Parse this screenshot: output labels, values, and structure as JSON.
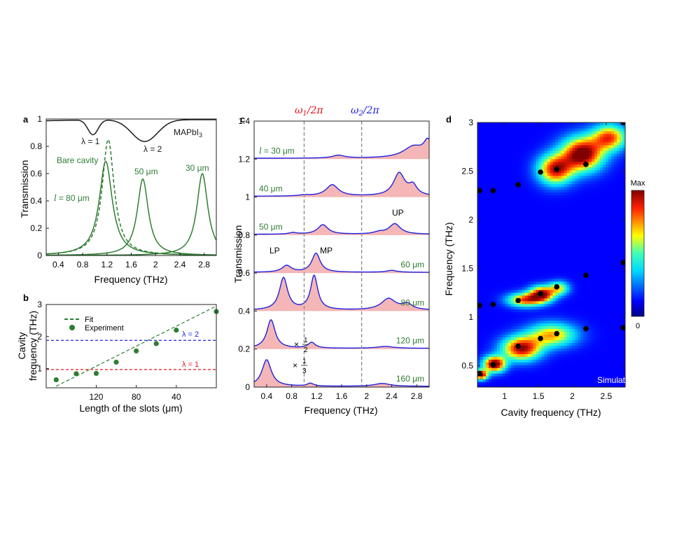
{
  "colors": {
    "black": "#1a1a1a",
    "green": "#2e7d32",
    "blue": "#2020e0",
    "red": "#e0161b",
    "fill": "#f4b6b6"
  },
  "panel_letters": [
    "a",
    "b",
    "c",
    "d"
  ],
  "chart_data": [
    {
      "id": "a",
      "type": "line",
      "xlabel": "Frequency (THz)",
      "ylabel": "Transmission",
      "xlim": [
        0.2,
        3.0
      ],
      "ylim": [
        0,
        1
      ],
      "xticks": [
        "0.4",
        "0.8",
        "1.2",
        "1.6",
        "2",
        "2.4",
        "2.8"
      ],
      "xtick_values": [
        0.4,
        0.8,
        1.2,
        1.6,
        2.0,
        2.4,
        2.8
      ],
      "yticks": [
        "0",
        "0.2",
        "0.4",
        "0.6",
        "0.8",
        "1"
      ],
      "ytick_values": [
        0,
        0.2,
        0.4,
        0.6,
        0.8,
        1.0
      ],
      "labels": {
        "mapbi_main": "MAPbI",
        "mapbi_sub": "3",
        "lambda1": "λ = 1",
        "lambda2": "λ = 2",
        "bare": "Bare cavity",
        "l80": "= 80 μm",
        "l80_prefix": "l",
        "l50": "50 μm",
        "l30": "30 μm"
      },
      "series": [
        {
          "name": "MAPbI3",
          "style": "black",
          "dips": [
            {
              "f": 0.97,
              "depth": 0.11,
              "w": 0.12
            },
            {
              "f": 1.82,
              "depth": 0.16,
              "w": 0.3
            }
          ]
        },
        {
          "name": "80 μm",
          "style": "green",
          "peak": 1.18,
          "height": 0.69,
          "gamma": 0.13
        },
        {
          "name": "Bare cavity",
          "style": "green-dashed",
          "peak": 1.22,
          "height": 0.85,
          "gamma": 0.12
        },
        {
          "name": "50 μm",
          "style": "green",
          "peak": 1.79,
          "height": 0.56,
          "gamma": 0.11
        },
        {
          "name": "30 μm",
          "style": "green",
          "peak": 2.77,
          "height": 0.6,
          "gamma": 0.11
        }
      ]
    },
    {
      "id": "b",
      "type": "scatter",
      "xlabel": "Length of the slots (μm)",
      "ylabel_line1": "Cavity",
      "ylabel_line2": "frequency (THz)",
      "xlim": [
        170,
        0
      ],
      "ylim": [
        0.4,
        3.0
      ],
      "xticks": [
        "120",
        "80",
        "40"
      ],
      "xtick_values": [
        120,
        80,
        40
      ],
      "yticks": [
        "1",
        "2",
        "3"
      ],
      "ytick_values": [
        1,
        2,
        3
      ],
      "legend": [
        "Fit",
        "Experiment"
      ],
      "hlines": [
        {
          "label": "λ = 2",
          "y": 1.88,
          "color": "blue"
        },
        {
          "label": "λ = 1",
          "y": 0.97,
          "color": "red"
        }
      ],
      "fit": {
        "x": [
          160,
          0
        ],
        "y": [
          0.45,
          2.95
        ]
      },
      "points": [
        {
          "x": 160,
          "y": 0.65
        },
        {
          "x": 140,
          "y": 0.84
        },
        {
          "x": 120,
          "y": 0.85
        },
        {
          "x": 100,
          "y": 1.2
        },
        {
          "x": 80,
          "y": 1.55
        },
        {
          "x": 60,
          "y": 1.78
        },
        {
          "x": 40,
          "y": 2.2
        },
        {
          "x": 0,
          "y": 2.78
        }
      ]
    },
    {
      "id": "c",
      "type": "line",
      "xlabel": "Frequency (THz)",
      "ylabel": "Transmission",
      "xlim": [
        0.2,
        3.0
      ],
      "ylim": [
        0,
        1.4
      ],
      "xticks": [
        "0.4",
        "0.8",
        "1.2",
        "1.6",
        "2",
        "2.4",
        "2.8"
      ],
      "xtick_values": [
        0.4,
        0.8,
        1.2,
        1.6,
        2.0,
        2.4,
        2.8
      ],
      "yticks": [
        "0",
        "0.2",
        "0.4",
        "0.6",
        "0.8",
        "1",
        "1.2",
        "1.4"
      ],
      "ytick_values": [
        0,
        0.2,
        0.4,
        0.6,
        0.8,
        1.0,
        1.2,
        1.4
      ],
      "vlines": [
        {
          "x": 1.0,
          "label": "ω",
          "sub": "1",
          "tail": "/2π",
          "color": "red"
        },
        {
          "x": 1.92,
          "label": "ω",
          "sub": "2",
          "tail": "/2π",
          "color": "blue"
        }
      ],
      "annotations": {
        "lp": "LP",
        "mp": "MP",
        "up": "UP",
        "half": "1",
        "half_den": "2",
        "third": "1",
        "third_den": "3",
        "times": "×"
      },
      "series": [
        {
          "label": "= 30 μm",
          "prefix": "l",
          "baseline": 1.2,
          "label_side": "left",
          "peaks": [
            {
              "f": 1.55,
              "h": 0.015,
              "w": 0.12
            },
            {
              "f": 2.75,
              "h": 0.06,
              "w": 0.2
            },
            {
              "f": 2.98,
              "h": 0.08,
              "w": 0.08
            }
          ]
        },
        {
          "label": "40 μm",
          "baseline": 1.0,
          "label_side": "left",
          "peaks": [
            {
              "f": 1.45,
              "h": 0.06,
              "w": 0.12
            },
            {
              "f": 2.52,
              "h": 0.12,
              "w": 0.11
            },
            {
              "f": 2.74,
              "h": 0.05,
              "w": 0.08
            },
            {
              "f": 1.0,
              "h": 0.005,
              "w": 0.1
            }
          ]
        },
        {
          "label": "50 μm",
          "baseline": 0.8,
          "label_side": "left",
          "peaks": [
            {
              "f": 1.3,
              "h": 0.05,
              "w": 0.1
            },
            {
              "f": 0.82,
              "h": 0.008,
              "w": 0.08
            },
            {
              "f": 2.45,
              "h": 0.055,
              "w": 0.11
            },
            {
              "f": 2.2,
              "h": 0.01,
              "w": 0.1
            }
          ]
        },
        {
          "label": "60 μm",
          "baseline": 0.6,
          "label_side": "right",
          "peaks": [
            {
              "f": 0.72,
              "h": 0.035,
              "w": 0.09
            },
            {
              "f": 1.19,
              "h": 0.1,
              "w": 0.08
            },
            {
              "f": 2.4,
              "h": 0.01,
              "w": 0.1
            }
          ]
        },
        {
          "label": "80 μm",
          "baseline": 0.4,
          "label_side": "right",
          "peaks": [
            {
              "f": 0.67,
              "h": 0.17,
              "w": 0.08
            },
            {
              "f": 1.16,
              "h": 0.18,
              "w": 0.07
            },
            {
              "f": 2.35,
              "h": 0.06,
              "w": 0.14
            },
            {
              "f": 2.65,
              "h": 0.03,
              "w": 0.1
            }
          ]
        },
        {
          "label": "120 μm",
          "baseline": 0.2,
          "label_side": "right",
          "peaks": [
            {
              "f": 0.47,
              "h": 0.15,
              "w": 0.08
            },
            {
              "f": 1.12,
              "h": 0.03,
              "w": 0.07
            },
            {
              "f": 2.3,
              "h": 0.01,
              "w": 0.15
            }
          ]
        },
        {
          "label": "160 μm",
          "baseline": 0.0,
          "label_side": "right",
          "peaks": [
            {
              "f": 0.4,
              "h": 0.14,
              "w": 0.09
            },
            {
              "f": 1.1,
              "h": 0.015,
              "w": 0.06
            },
            {
              "f": 2.25,
              "h": 0.015,
              "w": 0.15
            }
          ]
        }
      ]
    },
    {
      "id": "d",
      "type": "heatmap",
      "xlabel": "Cavity frequency (THz)",
      "ylabel": "Frequency (THz)",
      "xlim": [
        0.6,
        2.78
      ],
      "ylim": [
        0.28,
        3.0
      ],
      "xticks": [
        "1",
        "1.5",
        "2",
        "2.5"
      ],
      "xtick_values": [
        1.0,
        1.5,
        2.0,
        2.5
      ],
      "yticks": [
        "0.5",
        "1",
        "1.5",
        "2",
        "2.5",
        "3"
      ],
      "ytick_values": [
        0.5,
        1.0,
        1.5,
        2.0,
        2.5,
        3.0
      ],
      "colorbar": {
        "max_label": "Max",
        "min_label": "0"
      },
      "annotation": "Simulation",
      "blobs": [
        {
          "x": 0.65,
          "y": 0.41,
          "amp": 0.9,
          "sx": 0.1,
          "sy": 0.05
        },
        {
          "x": 0.85,
          "y": 0.52,
          "amp": 0.95,
          "sx": 0.16,
          "sy": 0.08
        },
        {
          "x": 1.25,
          "y": 0.68,
          "amp": 0.85,
          "sx": 0.28,
          "sy": 0.12
        },
        {
          "x": 1.7,
          "y": 0.82,
          "amp": 0.6,
          "sx": 0.35,
          "sy": 0.12
        },
        {
          "x": 1.3,
          "y": 1.18,
          "amp": 0.7,
          "sx": 0.25,
          "sy": 0.07
        },
        {
          "x": 1.55,
          "y": 1.24,
          "amp": 0.85,
          "sx": 0.18,
          "sy": 0.08
        },
        {
          "x": 1.8,
          "y": 1.3,
          "amp": 0.5,
          "sx": 0.15,
          "sy": 0.07
        },
        {
          "x": 1.75,
          "y": 2.52,
          "amp": 0.8,
          "sx": 0.25,
          "sy": 0.15
        },
        {
          "x": 2.15,
          "y": 2.68,
          "amp": 0.95,
          "sx": 0.3,
          "sy": 0.17
        },
        {
          "x": 2.55,
          "y": 2.85,
          "amp": 0.7,
          "sx": 0.25,
          "sy": 0.13
        }
      ],
      "points": [
        {
          "x": 0.63,
          "y": 0.42
        },
        {
          "x": 0.83,
          "y": 0.51
        },
        {
          "x": 1.2,
          "y": 0.7
        },
        {
          "x": 1.53,
          "y": 0.78
        },
        {
          "x": 1.77,
          "y": 0.83
        },
        {
          "x": 2.2,
          "y": 0.88
        },
        {
          "x": 2.75,
          "y": 0.89
        },
        {
          "x": 0.63,
          "y": 1.12
        },
        {
          "x": 0.83,
          "y": 1.13
        },
        {
          "x": 1.2,
          "y": 1.17
        },
        {
          "x": 1.53,
          "y": 1.24
        },
        {
          "x": 1.77,
          "y": 1.31
        },
        {
          "x": 2.2,
          "y": 1.43
        },
        {
          "x": 2.75,
          "y": 1.56
        },
        {
          "x": 0.63,
          "y": 2.3
        },
        {
          "x": 0.83,
          "y": 2.3
        },
        {
          "x": 1.2,
          "y": 2.36
        },
        {
          "x": 1.53,
          "y": 2.49
        },
        {
          "x": 1.77,
          "y": 2.52
        },
        {
          "x": 2.2,
          "y": 2.57
        },
        {
          "x": 2.75,
          "y": 3.0
        }
      ]
    }
  ]
}
